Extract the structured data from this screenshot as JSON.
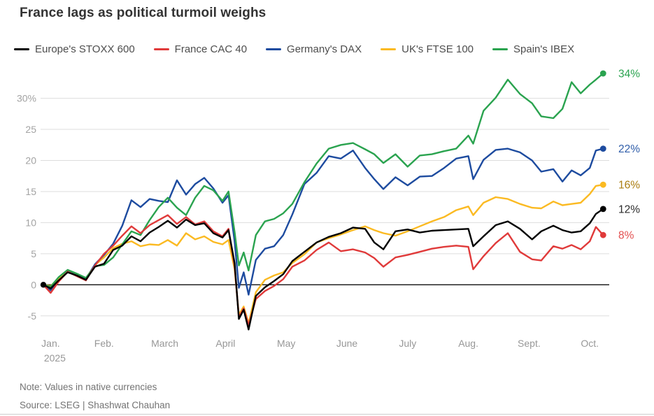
{
  "page": {
    "note": "Note: Values in native currencies",
    "source": "Source: LSEG | Shashwat Chauhan"
  },
  "chart_data": {
    "type": "line",
    "title": "France lags as political turmoil weighs",
    "legend_position": "top",
    "grid": true,
    "x_unit": "months since Jan 1, 2025",
    "x_range": [
      0,
      9.25
    ],
    "ylim": [
      -7.5,
      35
    ],
    "y_axis": {
      "ticks": [
        {
          "value": 30,
          "label": "30%"
        },
        {
          "value": 25,
          "label": "25"
        },
        {
          "value": 20,
          "label": "20"
        },
        {
          "value": 15,
          "label": "15"
        },
        {
          "value": 10,
          "label": "10"
        },
        {
          "value": 5,
          "label": "5"
        },
        {
          "value": 0,
          "label": "0"
        },
        {
          "value": -5,
          "label": "-5"
        }
      ],
      "zero_line_color": "#111111",
      "grid_color": "#dddddd"
    },
    "x_axis": {
      "ticks": [
        {
          "label": "Jan.",
          "m": 0.12,
          "sub": "2025"
        },
        {
          "label": "Feb.",
          "m": 1
        },
        {
          "label": "March",
          "m": 2
        },
        {
          "label": "April",
          "m": 3
        },
        {
          "label": "May",
          "m": 4
        },
        {
          "label": "June",
          "m": 5
        },
        {
          "label": "July",
          "m": 6
        },
        {
          "label": "Aug.",
          "m": 7
        },
        {
          "label": "Sept.",
          "m": 8
        },
        {
          "label": "Oct.",
          "m": 9
        }
      ]
    },
    "x": [
      0,
      0.12,
      0.25,
      0.4,
      0.55,
      0.7,
      0.85,
      1.0,
      1.15,
      1.3,
      1.45,
      1.6,
      1.75,
      1.9,
      2.05,
      2.2,
      2.35,
      2.5,
      2.65,
      2.8,
      2.95,
      3.05,
      3.15,
      3.22,
      3.3,
      3.38,
      3.5,
      3.65,
      3.8,
      3.95,
      4.1,
      4.3,
      4.5,
      4.7,
      4.9,
      5.1,
      5.3,
      5.45,
      5.6,
      5.8,
      6.0,
      6.2,
      6.4,
      6.6,
      6.8,
      7.0,
      7.08,
      7.25,
      7.45,
      7.65,
      7.85,
      8.05,
      8.2,
      8.4,
      8.55,
      8.7,
      8.85,
      9.0,
      9.1,
      9.22
    ],
    "series": [
      {
        "name": "Europe's STOXX 600",
        "color": "#000000",
        "label_color": "#2b2b2b",
        "end_label": "12%",
        "end_value": 12.2,
        "values": [
          0,
          -0.6,
          0.7,
          2.0,
          1.5,
          0.8,
          2.9,
          3.4,
          5.6,
          6.3,
          7.8,
          7.0,
          8.4,
          9.3,
          10.3,
          9.2,
          10.5,
          9.6,
          9.9,
          8.3,
          7.6,
          8.8,
          3.5,
          -5.5,
          -4.0,
          -7.2,
          -1.8,
          -0.4,
          0.6,
          1.7,
          3.8,
          5.3,
          6.8,
          7.7,
          8.3,
          9.2,
          9.0,
          6.8,
          5.7,
          8.6,
          8.9,
          8.4,
          8.7,
          8.8,
          8.9,
          9.0,
          6.2,
          7.8,
          9.6,
          10.2,
          9.0,
          7.3,
          8.6,
          9.5,
          8.8,
          8.4,
          8.6,
          9.9,
          11.4,
          12.2
        ]
      },
      {
        "name": "France CAC 40",
        "color": "#e03a3a",
        "label_color": "#e35050",
        "end_label": "8%",
        "end_value": 8.0,
        "values": [
          0,
          -1.3,
          0.5,
          2.1,
          1.4,
          0.7,
          3.1,
          5.0,
          6.3,
          7.9,
          9.4,
          8.3,
          9.6,
          10.4,
          11.2,
          9.8,
          10.9,
          9.7,
          10.2,
          8.6,
          7.8,
          9.0,
          3.0,
          -5.2,
          -3.8,
          -6.5,
          -2.3,
          -1.0,
          -0.2,
          0.9,
          2.9,
          3.9,
          5.6,
          6.8,
          5.4,
          5.7,
          5.2,
          4.3,
          2.9,
          4.4,
          4.8,
          5.3,
          5.8,
          6.1,
          6.3,
          6.1,
          2.5,
          4.6,
          6.7,
          8.3,
          5.3,
          4.1,
          3.9,
          6.2,
          5.8,
          6.4,
          5.7,
          7.0,
          9.3,
          8.0
        ]
      },
      {
        "name": "Germany's DAX",
        "color": "#1d4b9f",
        "label_color": "#2f5da9",
        "end_label": "22%",
        "end_value": 21.9,
        "values": [
          0,
          -0.9,
          0.6,
          2.1,
          1.5,
          0.9,
          3.3,
          4.8,
          6.6,
          9.5,
          13.6,
          12.5,
          13.8,
          13.5,
          13.3,
          16.8,
          14.5,
          16.2,
          17.2,
          15.5,
          13.2,
          14.4,
          7.0,
          -0.5,
          2.0,
          -1.6,
          4.0,
          5.8,
          6.2,
          8.0,
          11.3,
          16.2,
          18.0,
          20.7,
          20.3,
          21.6,
          18.8,
          17.0,
          15.4,
          17.3,
          16.0,
          17.4,
          17.5,
          18.8,
          20.3,
          20.7,
          17.0,
          20.1,
          21.7,
          21.9,
          21.3,
          20.0,
          18.2,
          18.6,
          16.6,
          18.4,
          17.6,
          18.8,
          21.6,
          21.9
        ]
      },
      {
        "name": "UK's FTSE 100",
        "color": "#fbba22",
        "label_color": "#ab7d10",
        "end_label": "16%",
        "end_value": 16.1,
        "values": [
          0,
          -0.2,
          1.0,
          2.2,
          1.6,
          1.0,
          3.2,
          4.4,
          5.9,
          6.6,
          7.0,
          6.2,
          6.5,
          6.4,
          7.2,
          6.3,
          8.3,
          7.3,
          7.8,
          6.9,
          6.5,
          7.2,
          2.5,
          -4.8,
          -3.5,
          -6.2,
          -1.2,
          0.8,
          1.5,
          2.0,
          3.5,
          4.9,
          6.8,
          7.5,
          8.1,
          8.8,
          9.4,
          8.8,
          8.3,
          7.9,
          8.6,
          9.4,
          10.2,
          10.9,
          12.0,
          12.6,
          11.2,
          13.2,
          14.1,
          13.8,
          13.0,
          12.4,
          12.3,
          13.4,
          12.8,
          13.0,
          13.2,
          14.6,
          15.9,
          16.1
        ]
      },
      {
        "name": "Spain's IBEX",
        "color": "#2aa34f",
        "label_color": "#2aa34f",
        "end_label": "34%",
        "end_value": 34.0,
        "values": [
          0,
          -0.3,
          1.2,
          2.4,
          1.8,
          1.1,
          3.0,
          3.2,
          4.4,
          6.5,
          8.6,
          8.0,
          10.4,
          12.5,
          14.0,
          12.4,
          11.2,
          14.0,
          15.9,
          15.2,
          13.5,
          15.0,
          8.5,
          3.1,
          5.2,
          2.3,
          8.0,
          10.2,
          10.6,
          11.5,
          13.0,
          16.5,
          19.5,
          21.9,
          22.5,
          22.8,
          21.8,
          21.0,
          19.6,
          21.0,
          19.0,
          20.8,
          21.0,
          21.5,
          21.9,
          24.0,
          22.7,
          28.0,
          30.1,
          33.0,
          30.7,
          29.2,
          27.1,
          26.8,
          28.3,
          32.6,
          30.8,
          32.2,
          33.0,
          34.0
        ]
      }
    ]
  }
}
